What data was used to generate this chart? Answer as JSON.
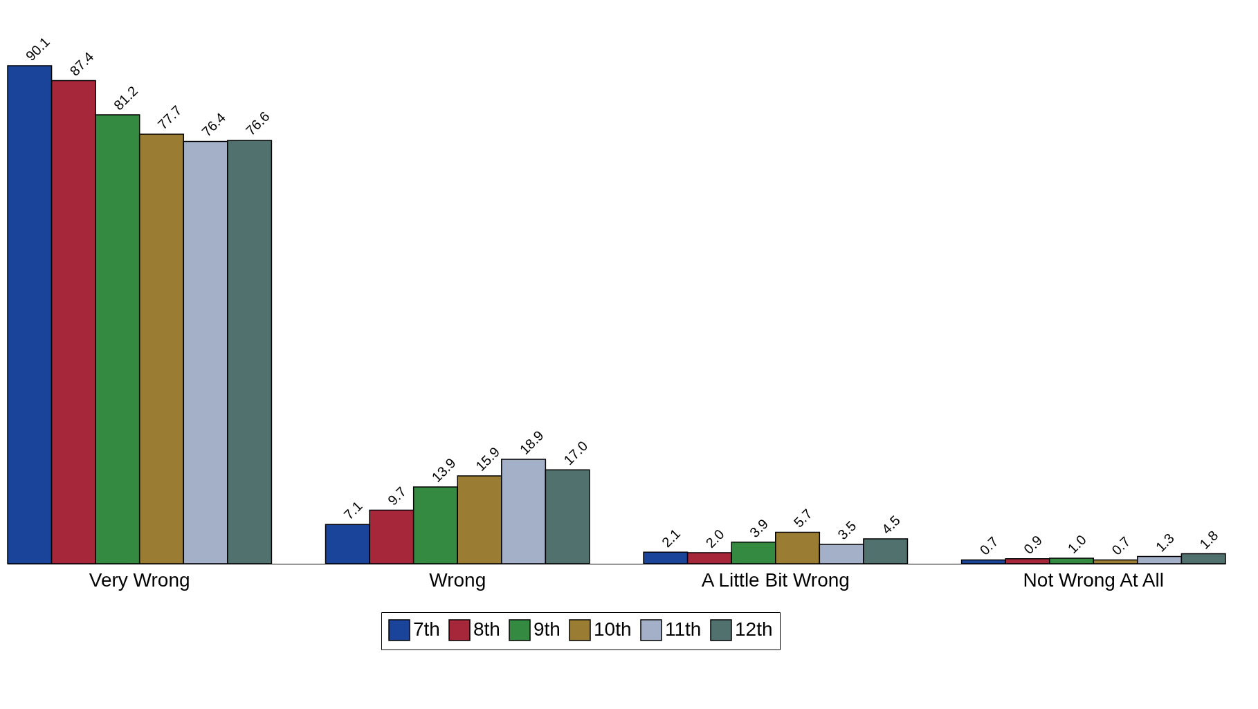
{
  "chart_data": {
    "type": "bar",
    "categories": [
      "Very Wrong",
      "Wrong",
      "A Little Bit Wrong",
      "Not Wrong At All"
    ],
    "series": [
      {
        "name": "7th",
        "color": "#1a449a",
        "values": [
          90.1,
          7.1,
          2.1,
          0.7
        ],
        "value_labels": [
          "90.1",
          "7.1",
          "2.1",
          "0.7"
        ]
      },
      {
        "name": "8th",
        "color": "#a6273a",
        "values": [
          87.4,
          9.7,
          2.0,
          0.9
        ],
        "value_labels": [
          "87.4",
          "9.7",
          "2.0",
          "0.9"
        ]
      },
      {
        "name": "9th",
        "color": "#358a41",
        "values": [
          81.2,
          13.9,
          3.9,
          1.0
        ],
        "value_labels": [
          "81.2",
          "13.9",
          "3.9",
          "1.0"
        ]
      },
      {
        "name": "10th",
        "color": "#9b7c33",
        "values": [
          77.7,
          15.9,
          5.7,
          0.7
        ],
        "value_labels": [
          "77.7",
          "15.9",
          "5.7",
          "0.7"
        ]
      },
      {
        "name": "11th",
        "color": "#a3b0c8",
        "values": [
          76.4,
          18.9,
          3.5,
          1.3
        ],
        "value_labels": [
          "76.4",
          "18.9",
          "3.5",
          "1.3"
        ]
      },
      {
        "name": "12th",
        "color": "#50716e",
        "values": [
          76.6,
          17.0,
          4.5,
          1.8
        ],
        "value_labels": [
          "76.6",
          "17.0",
          "4.5",
          "1.8"
        ]
      }
    ],
    "legend": "bottom",
    "grid": false,
    "tick_labels": "x"
  }
}
